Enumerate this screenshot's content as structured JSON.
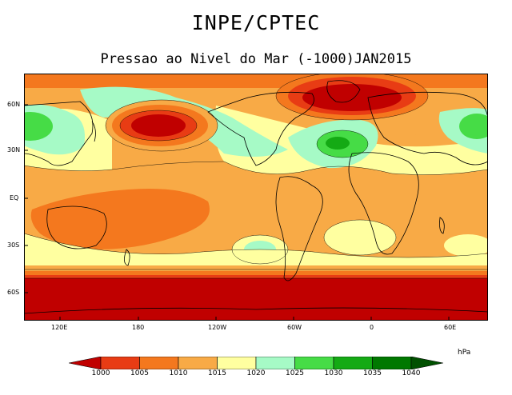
{
  "header": {
    "title": "INPE/CPTEC",
    "subtitle": "Pressao ao Nivel do Mar (-1000)JAN2015"
  },
  "map": {
    "lat_labels": [
      "60N",
      "30N",
      "EQ",
      "30S",
      "60S"
    ],
    "lon_labels": [
      "120E",
      "180",
      "120W",
      "60W",
      "0",
      "60E"
    ]
  },
  "colorbar": {
    "unit": "hPa",
    "levels": [
      "1000",
      "1005",
      "1010",
      "1015",
      "1020",
      "1025",
      "1030",
      "1035",
      "1040"
    ],
    "colors": [
      "#c00000",
      "#e83c14",
      "#f4781e",
      "#f8aa46",
      "#ffffa0",
      "#a6fac6",
      "#46dc46",
      "#14aa14",
      "#007800",
      "#005000"
    ]
  }
}
